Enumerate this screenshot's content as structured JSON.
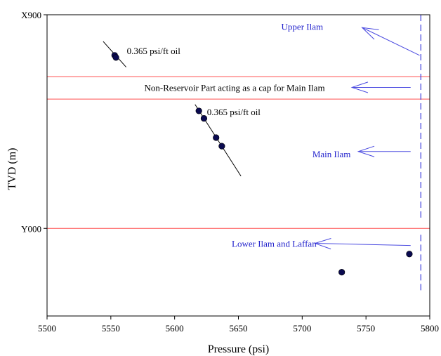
{
  "chart_data": {
    "type": "scatter",
    "xlabel": "Pressure (psi)",
    "ylabel": "TVD (m)",
    "xlim": [
      5500,
      5800
    ],
    "x_ticks": [
      5500,
      5550,
      5600,
      5650,
      5700,
      5750,
      5800
    ],
    "y_ticks": [
      {
        "label": "X900",
        "value": 0
      },
      {
        "label": "Y000",
        "value": 100
      }
    ],
    "ylim": [
      0,
      141
    ],
    "y_inverted": true,
    "grid": false,
    "points": [
      {
        "x": 5553,
        "y": 19
      },
      {
        "x": 5554,
        "y": 20
      },
      {
        "x": 5619,
        "y": 45
      },
      {
        "x": 5623,
        "y": 48.5
      },
      {
        "x": 5632.5,
        "y": 57.5
      },
      {
        "x": 5637,
        "y": 61.5
      },
      {
        "x": 5731,
        "y": 120.5
      },
      {
        "x": 5784,
        "y": 112
      }
    ],
    "trend_lines": [
      {
        "label": "0.365 psi/ft oil",
        "x": [
          5544,
          5562
        ],
        "y": [
          12.5,
          24.5
        ]
      },
      {
        "label": "0.365 psi/ft oil",
        "x": [
          5616,
          5652
        ],
        "y": [
          42,
          75.5
        ]
      }
    ],
    "horizontal_lines": [
      {
        "y": 29,
        "color": "#ff4d4d"
      },
      {
        "y": 39.5,
        "color": "#ff4d4d"
      },
      {
        "y": 100,
        "color": "#ff4d4d"
      }
    ],
    "dashed_vertical_line": {
      "x": 5793,
      "y": [
        0,
        96
      ],
      "y2": [
        103,
        129
      ],
      "color": "#3b3bdc"
    },
    "zones": [
      {
        "label": "Upper Ilam",
        "label_x": 5700,
        "label_y": 5.5,
        "arrow_from": [
          5792,
          19
        ],
        "arrow_to": [
          5747,
          6
        ]
      },
      {
        "label": "Non-Reservoir Part acting as a cap for Main Ilam",
        "label_x": 5647,
        "label_y": 34,
        "arrow_from": [
          5785,
          34
        ],
        "arrow_to": [
          5739,
          34
        ]
      },
      {
        "label": "Main Ilam",
        "label_x": 5723,
        "label_y": 65,
        "arrow_from": [
          5785,
          64
        ],
        "arrow_to": [
          5744,
          64
        ]
      },
      {
        "label": "Lower Ilam and Laffan",
        "label_x": 5678,
        "label_y": 107,
        "arrow_from": [
          5785,
          108
        ],
        "arrow_to": [
          5710,
          107
        ]
      }
    ],
    "colors": {
      "axis": "#000000",
      "points": "#0a0a50",
      "zone_text": "#2222cc",
      "arrow": "#4a4ae0",
      "red_line": "#ff4d4d",
      "trend": "#000000"
    }
  }
}
